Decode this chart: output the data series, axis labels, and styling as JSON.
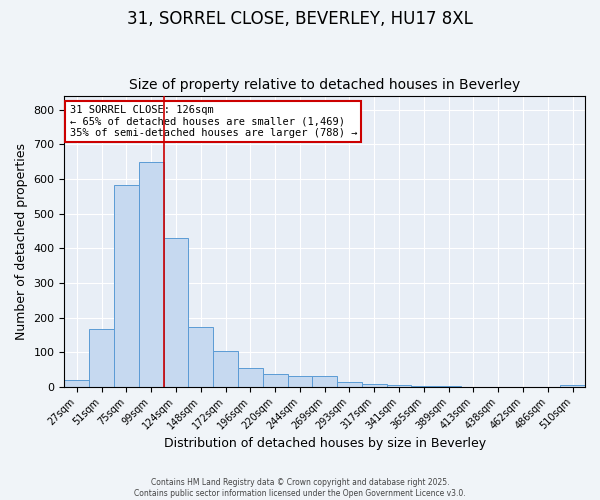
{
  "title1": "31, SORREL CLOSE, BEVERLEY, HU17 8XL",
  "title2": "Size of property relative to detached houses in Beverley",
  "xlabel": "Distribution of detached houses by size in Beverley",
  "ylabel": "Number of detached properties",
  "bar_color": "#c6d9f0",
  "bar_edge_color": "#5b9bd5",
  "bg_color": "#e8eef6",
  "grid_color": "#ffffff",
  "vline_color": "#cc0000",
  "vline_bin_index": 4,
  "annotation_text": "31 SORREL CLOSE: 126sqm\n← 65% of detached houses are smaller (1,469)\n35% of semi-detached houses are larger (788) →",
  "annotation_box_color": "#ffffff",
  "annotation_box_edge": "#cc0000",
  "bins": [
    27,
    51,
    75,
    99,
    124,
    148,
    172,
    196,
    220,
    244,
    269,
    293,
    317,
    341,
    365,
    389,
    413,
    438,
    462,
    486,
    510
  ],
  "values": [
    20,
    168,
    582,
    648,
    430,
    172,
    103,
    55,
    38,
    30,
    30,
    14,
    8,
    5,
    3,
    2,
    0,
    0,
    0,
    0,
    5
  ],
  "ylim": [
    0,
    840
  ],
  "yticks": [
    0,
    100,
    200,
    300,
    400,
    500,
    600,
    700,
    800
  ],
  "footer1": "Contains HM Land Registry data © Crown copyright and database right 2025.",
  "footer2": "Contains public sector information licensed under the Open Government Licence v3.0.",
  "title_fontsize": 12,
  "subtitle_fontsize": 10,
  "tick_fontsize": 7,
  "axis_label_fontsize": 9
}
